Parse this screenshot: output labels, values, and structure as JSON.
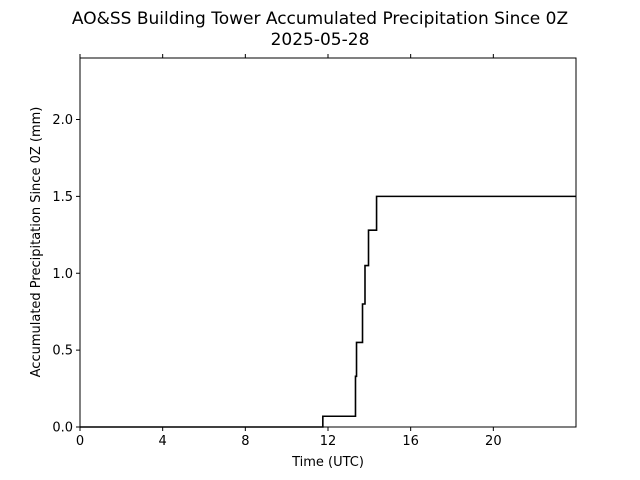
{
  "chart_data": {
    "type": "line",
    "title": "AO&SS Building Tower Accumulated Precipitation Since 0Z",
    "subtitle": "2025-05-28",
    "xlabel": "Time (UTC)",
    "ylabel": "Accumulated Precipitation Since 0Z (mm)",
    "xlim": [
      0,
      24
    ],
    "ylim": [
      0,
      2.4
    ],
    "xticks": [
      0,
      4,
      8,
      12,
      16,
      20
    ],
    "xtick_labels": [
      "0",
      "4",
      "8",
      "12",
      "16",
      "20"
    ],
    "yticks": [
      0,
      0.5,
      1.0,
      1.5,
      2.0
    ],
    "ytick_labels": [
      "0.0",
      "0.5",
      "1.0",
      "1.5",
      "2.0"
    ],
    "grid": false,
    "series": [
      {
        "color": "#000000",
        "step": true,
        "x": [
          0,
          11.75,
          13.33,
          13.38,
          13.67,
          13.79,
          13.96,
          14.35,
          24
        ],
        "y": [
          0,
          0.07,
          0.33,
          0.55,
          0.8,
          1.05,
          1.28,
          1.5,
          1.5
        ]
      }
    ]
  }
}
